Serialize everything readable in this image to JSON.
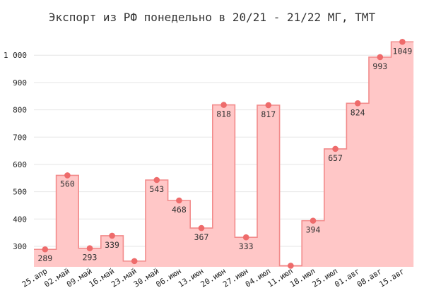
{
  "chart_data": {
    "type": "area",
    "step": true,
    "title": "Экспорт из РФ понедельно в 20/21 - 21/22 МГ, ТМТ",
    "xlabel": "",
    "ylabel": "",
    "categories": [
      "25.апр",
      "02.май",
      "09.май",
      "16.май",
      "23.май",
      "30.май",
      "06.июн",
      "13.июн",
      "20.июн",
      "27.июн",
      "04.июл",
      "11.июл",
      "18.июл",
      "25.июл",
      "01.авг",
      "08.авг",
      "15.авг"
    ],
    "series": [
      {
        "values": [
          289,
          560,
          293,
          339,
          246,
          543,
          468,
          367,
          818,
          333,
          817,
          229,
          394,
          657,
          824,
          993,
          1049
        ]
      }
    ],
    "data_labels": [
      "289",
      "560",
      "293",
      "339",
      "",
      "543",
      "468",
      "367",
      "818",
      "333",
      "817",
      "",
      "394",
      "657",
      "824",
      "993",
      "1049"
    ],
    "label_position": [
      "below",
      "above",
      "below",
      "below",
      "below",
      "below",
      "below",
      "below",
      "below",
      "below",
      "below",
      "below",
      "below",
      "below",
      "below",
      "below",
      "below"
    ],
    "yticks": [
      300,
      400,
      500,
      600,
      700,
      800,
      900,
      1000
    ],
    "ytick_labels": [
      "300",
      "400",
      "500",
      "600",
      "700",
      "800",
      "900",
      "1 000"
    ],
    "ylim": [
      225,
      1060
    ],
    "grid": true,
    "colors": {
      "fill": "#ffc7c7",
      "line": "#f28b8b",
      "marker": "#ee6b6b",
      "grid": "#e6e6e6"
    }
  }
}
